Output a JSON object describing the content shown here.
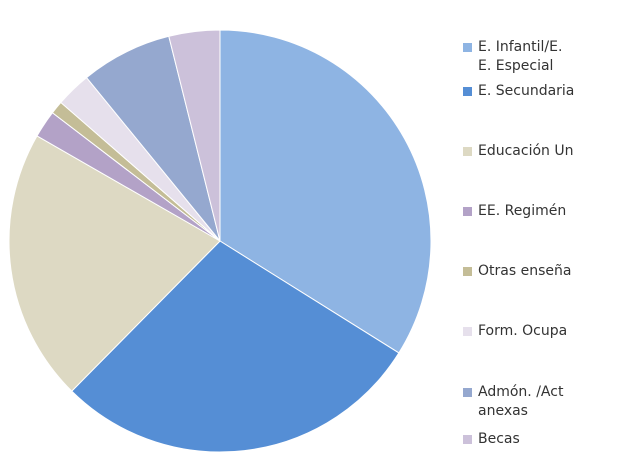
{
  "chart_data": {
    "type": "pie",
    "categories": [
      "E. Infantil/E.\nE. Especial",
      "E. Secundaria",
      "Educación Un",
      "EE. Regimén",
      "Otras enseña",
      "Form. Ocupa",
      "Admón. /Act\nanexas",
      "Becas"
    ],
    "values": [
      33.9,
      28.5,
      20.9,
      2.1,
      1.0,
      2.7,
      7.0,
      3.9
    ],
    "colors": [
      "#8eb4e3",
      "#558ed5",
      "#ddd9c3",
      "#b3a2c7",
      "#c4bd97",
      "#e6e0ec",
      "#95a8cf",
      "#ccc1da"
    ],
    "legend": "right"
  }
}
